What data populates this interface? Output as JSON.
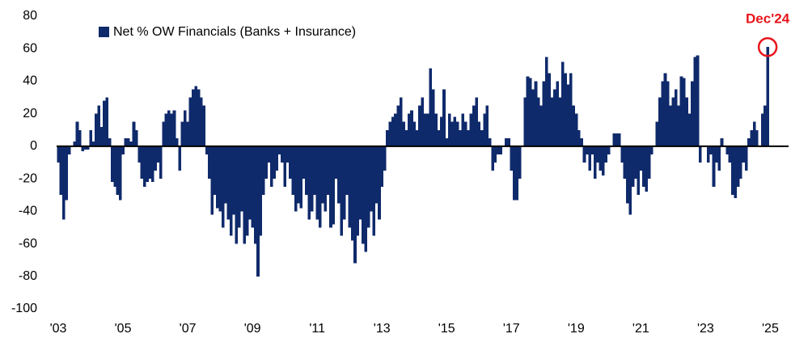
{
  "chart_data": {
    "type": "bar",
    "categories": [
      "'03",
      null,
      null,
      null,
      null,
      null,
      null,
      null,
      null,
      null,
      null,
      null,
      null,
      null,
      null,
      null,
      null,
      null,
      null,
      null,
      null,
      null,
      null,
      null,
      "'05",
      null,
      null,
      null,
      null,
      null,
      null,
      null,
      null,
      null,
      null,
      null,
      null,
      null,
      null,
      null,
      null,
      null,
      null,
      null,
      null,
      null,
      null,
      null,
      "'07",
      null,
      null,
      null,
      null,
      null,
      null,
      null,
      null,
      null,
      null,
      null,
      null,
      null,
      null,
      null,
      null,
      null,
      null,
      null,
      null,
      null,
      null,
      null,
      "'09",
      null,
      null,
      null,
      null,
      null,
      null,
      null,
      null,
      null,
      null,
      null,
      null,
      null,
      null,
      null,
      null,
      null,
      null,
      null,
      null,
      null,
      null,
      null,
      "'11",
      null,
      null,
      null,
      null,
      null,
      null,
      null,
      null,
      null,
      null,
      null,
      null,
      null,
      null,
      null,
      null,
      null,
      null,
      null,
      null,
      null,
      null,
      null,
      "'13",
      null,
      null,
      null,
      null,
      null,
      null,
      null,
      null,
      null,
      null,
      null,
      null,
      null,
      null,
      null,
      null,
      null,
      null,
      null,
      null,
      null,
      null,
      null,
      "'15",
      null,
      null,
      null,
      null,
      null,
      null,
      null,
      null,
      null,
      null,
      null,
      null,
      null,
      null,
      null,
      null,
      null,
      null,
      null,
      null,
      null,
      null,
      null,
      "'17",
      null,
      null,
      null,
      null,
      null,
      null,
      null,
      null,
      null,
      null,
      null,
      null,
      null,
      null,
      null,
      null,
      null,
      null,
      null,
      null,
      null,
      null,
      null,
      "'19",
      null,
      null,
      null,
      null,
      null,
      null,
      null,
      null,
      null,
      null,
      null,
      null,
      null,
      null,
      null,
      null,
      null,
      null,
      null,
      null,
      null,
      null,
      null,
      "'21",
      null,
      null,
      null,
      null,
      null,
      null,
      null,
      null,
      null,
      null,
      null,
      null,
      null,
      null,
      null,
      null,
      null,
      null,
      null,
      null,
      null,
      null,
      null,
      "'23",
      null,
      null,
      null,
      null,
      null,
      null,
      null,
      null,
      null,
      null,
      null,
      null,
      null,
      null,
      null,
      null,
      null,
      null,
      null,
      null,
      null,
      null,
      null,
      "'25"
    ],
    "series": [
      {
        "name": "Net % OW Financials (Banks + Insurance)",
        "color": "#0f2a6b",
        "values": [
          -10,
          -30,
          -45,
          -33,
          -5,
          0,
          3,
          15,
          10,
          -3,
          -2,
          -2,
          10,
          3,
          20,
          25,
          12,
          28,
          30,
          5,
          -22,
          -25,
          -30,
          -33,
          -5,
          5,
          5,
          3,
          15,
          10,
          -10,
          -20,
          -25,
          -22,
          -20,
          -22,
          -15,
          -10,
          -20,
          15,
          20,
          22,
          20,
          22,
          5,
          -15,
          15,
          22,
          15,
          30,
          35,
          37,
          35,
          30,
          25,
          -5,
          -20,
          -42,
          -30,
          -38,
          -40,
          -50,
          -35,
          -45,
          -55,
          -42,
          -60,
          -50,
          -40,
          -60,
          -55,
          -45,
          -50,
          -60,
          -80,
          -55,
          -30,
          -20,
          -10,
          -25,
          -20,
          -15,
          -5,
          -10,
          -25,
          -10,
          -20,
          -30,
          -40,
          -35,
          -38,
          -20,
          -30,
          -45,
          -40,
          -30,
          -45,
          -50,
          -35,
          -40,
          -30,
          -50,
          -48,
          -20,
          -35,
          -55,
          -45,
          -30,
          -50,
          -58,
          -72,
          -55,
          -45,
          -60,
          -65,
          -50,
          -40,
          -55,
          -35,
          -45,
          -25,
          -15,
          10,
          15,
          18,
          20,
          25,
          30,
          15,
          10,
          20,
          22,
          15,
          10,
          25,
          30,
          20,
          20,
          48,
          35,
          20,
          10,
          18,
          35,
          5,
          20,
          15,
          18,
          15,
          10,
          20,
          15,
          10,
          20,
          25,
          30,
          15,
          10,
          20,
          25,
          5,
          -15,
          -10,
          -5,
          -5,
          0,
          5,
          5,
          -15,
          -33,
          -33,
          -20,
          0,
          30,
          43,
          42,
          35,
          40,
          30,
          25,
          40,
          55,
          45,
          30,
          35,
          40,
          30,
          52,
          45,
          38,
          45,
          25,
          20,
          10,
          5,
          -10,
          -5,
          -15,
          -5,
          -20,
          -10,
          -15,
          -18,
          -10,
          -5,
          0,
          8,
          8,
          8,
          -10,
          -20,
          -35,
          -42,
          -25,
          -20,
          -30,
          -15,
          -25,
          -28,
          -20,
          -5,
          0,
          15,
          30,
          40,
          45,
          40,
          25,
          30,
          35,
          25,
          43,
          42,
          30,
          20,
          40,
          55,
          56,
          -10,
          0,
          0,
          -10,
          -5,
          -25,
          -10,
          -15,
          5,
          0,
          -5,
          -10,
          -30,
          -32,
          -25,
          -20,
          -10,
          -15,
          5,
          10,
          15,
          10,
          0,
          20,
          25,
          61,
          null
        ]
      }
    ],
    "annotation": "Dec'24",
    "annotation_color": "#e8141b",
    "ylim": [
      -100,
      80
    ],
    "yticks": [
      -100,
      -80,
      -60,
      -40,
      -20,
      0,
      20,
      40,
      60,
      80
    ],
    "legend": "upper left"
  }
}
